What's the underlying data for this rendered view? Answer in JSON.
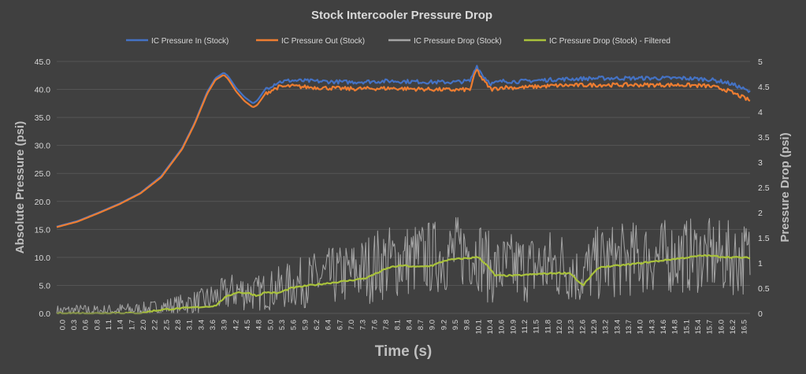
{
  "chart_data": {
    "type": "line",
    "title": "Stock Intercooler Pressure Drop",
    "xlabel": "Time (s)",
    "ylabel": "Absolute Pressure (psi)",
    "y2label": "Pressure Drop (psi)",
    "xlim": [
      0,
      16.6
    ],
    "ylim": [
      0,
      45
    ],
    "y2lim": [
      0,
      5
    ],
    "x_ticks": [
      "0.0",
      "0.3",
      "0.6",
      "0.8",
      "1.1",
      "1.4",
      "1.7",
      "2.0",
      "2.2",
      "2.5",
      "2.8",
      "3.1",
      "3.4",
      "3.6",
      "3.9",
      "4.2",
      "4.5",
      "4.8",
      "5.0",
      "5.3",
      "5.6",
      "5.9",
      "6.2",
      "6.4",
      "6.7",
      "7.0",
      "7.3",
      "7.6",
      "7.8",
      "8.1",
      "8.4",
      "8.7",
      "9.0",
      "9.2",
      "9.5",
      "9.8",
      "10.1",
      "10.4",
      "10.6",
      "10.9",
      "11.2",
      "11.5",
      "11.8",
      "12.0",
      "12.3",
      "12.6",
      "12.9",
      "13.2",
      "13.4",
      "13.7",
      "14.0",
      "14.3",
      "14.6",
      "14.8",
      "15.1",
      "15.4",
      "15.7",
      "16.0",
      "16.2",
      "16.5"
    ],
    "y_ticks": [
      "0.0",
      "5.0",
      "10.0",
      "15.0",
      "20.0",
      "25.0",
      "30.0",
      "35.0",
      "40.0",
      "45.0"
    ],
    "y2_ticks": [
      "0",
      "0.5",
      "1",
      "1.5",
      "2",
      "2.5",
      "3",
      "3.5",
      "4",
      "4.5",
      "5"
    ],
    "grid": true,
    "legend_position": "top",
    "series": [
      {
        "name": "IC Pressure In (Stock)",
        "axis": "left",
        "color": "#4472c4",
        "x": [
          0.0,
          0.5,
          1.0,
          1.5,
          2.0,
          2.5,
          3.0,
          3.3,
          3.6,
          3.8,
          4.0,
          4.1,
          4.3,
          4.5,
          4.7,
          4.8,
          5.0,
          5.3,
          5.6,
          6.0,
          7.0,
          8.0,
          9.0,
          9.5,
          9.9,
          10.05,
          10.2,
          10.4,
          10.7,
          11.0,
          12.0,
          13.0,
          14.0,
          15.0,
          15.6,
          16.0,
          16.3,
          16.6
        ],
        "y": [
          15.5,
          16.5,
          18.0,
          19.6,
          21.5,
          24.5,
          29.5,
          34.0,
          39.5,
          42.0,
          43.0,
          42.4,
          40.2,
          38.6,
          37.5,
          38.0,
          40.1,
          41.3,
          41.6,
          41.5,
          41.3,
          41.5,
          41.3,
          41.3,
          41.5,
          44.3,
          42.5,
          41.0,
          41.5,
          41.4,
          41.8,
          42.0,
          42.0,
          42.0,
          41.8,
          41.3,
          40.6,
          39.5
        ]
      },
      {
        "name": "IC Pressure Out (Stock)",
        "axis": "left",
        "color": "#ed7d31",
        "x": [
          0.0,
          0.5,
          1.0,
          1.5,
          2.0,
          2.5,
          3.0,
          3.3,
          3.6,
          3.8,
          4.0,
          4.1,
          4.3,
          4.5,
          4.7,
          4.8,
          5.0,
          5.3,
          5.6,
          6.0,
          7.0,
          8.0,
          9.0,
          9.5,
          9.9,
          10.05,
          10.2,
          10.4,
          10.7,
          11.0,
          12.0,
          13.0,
          14.0,
          15.0,
          15.6,
          16.0,
          16.3,
          16.6
        ],
        "y": [
          15.4,
          16.4,
          17.9,
          19.5,
          21.4,
          24.3,
          29.3,
          33.8,
          39.2,
          41.7,
          42.6,
          41.9,
          39.6,
          37.9,
          36.8,
          37.2,
          39.3,
          40.4,
          40.6,
          40.4,
          40.1,
          40.2,
          40.0,
          39.9,
          40.0,
          43.6,
          41.7,
          40.0,
          40.4,
          40.3,
          40.7,
          40.8,
          40.8,
          40.8,
          40.6,
          40.0,
          39.0,
          38.0
        ]
      },
      {
        "name": "IC Pressure Drop (Stock)",
        "axis": "right",
        "color": "#a5a5a5",
        "x": [
          0.0,
          0.5,
          1.0,
          1.5,
          2.0,
          2.5,
          3.0,
          3.5,
          3.9,
          4.3,
          4.8,
          5.3,
          5.8,
          6.3,
          6.8,
          7.3,
          7.8,
          8.3,
          8.8,
          9.3,
          9.8,
          10.1,
          10.4,
          10.8,
          11.3,
          11.8,
          12.3,
          12.5,
          12.7,
          13.0,
          13.5,
          14.0,
          14.5,
          15.0,
          15.5,
          16.0,
          16.6
        ],
        "y": [
          0.05,
          0.06,
          0.05,
          0.07,
          0.08,
          0.12,
          0.18,
          0.25,
          0.35,
          0.45,
          0.4,
          0.5,
          0.6,
          0.7,
          0.75,
          0.85,
          1.0,
          1.05,
          1.1,
          1.15,
          1.25,
          1.2,
          0.85,
          0.9,
          0.9,
          0.95,
          0.95,
          0.7,
          0.85,
          1.0,
          1.05,
          1.1,
          1.12,
          1.15,
          1.15,
          1.1,
          1.1
        ]
      },
      {
        "name": "IC Pressure Drop (Stock) - Filtered",
        "axis": "right",
        "color": "#a9c23b",
        "x": [
          0.0,
          0.5,
          1.0,
          1.5,
          2.0,
          2.3,
          2.6,
          3.0,
          3.5,
          3.8,
          4.0,
          4.3,
          4.6,
          4.8,
          5.0,
          5.3,
          5.6,
          6.0,
          6.5,
          7.0,
          7.4,
          7.8,
          8.0,
          8.3,
          8.6,
          9.0,
          9.3,
          9.6,
          9.9,
          10.1,
          10.3,
          10.5,
          11.0,
          11.5,
          12.0,
          12.3,
          12.5,
          12.6,
          12.8,
          13.0,
          13.5,
          14.0,
          14.5,
          15.0,
          15.5,
          16.0,
          16.6
        ],
        "y": [
          0.0,
          0.0,
          0.0,
          0.01,
          0.0,
          0.05,
          0.08,
          0.1,
          0.13,
          0.15,
          0.3,
          0.42,
          0.4,
          0.35,
          0.42,
          0.4,
          0.5,
          0.55,
          0.6,
          0.65,
          0.7,
          0.85,
          0.92,
          0.95,
          0.92,
          0.95,
          1.05,
          1.08,
          1.1,
          1.12,
          0.95,
          0.75,
          0.75,
          0.78,
          0.8,
          0.8,
          0.62,
          0.55,
          0.75,
          0.92,
          0.95,
          1.0,
          1.05,
          1.1,
          1.15,
          1.12,
          1.1
        ]
      }
    ]
  }
}
